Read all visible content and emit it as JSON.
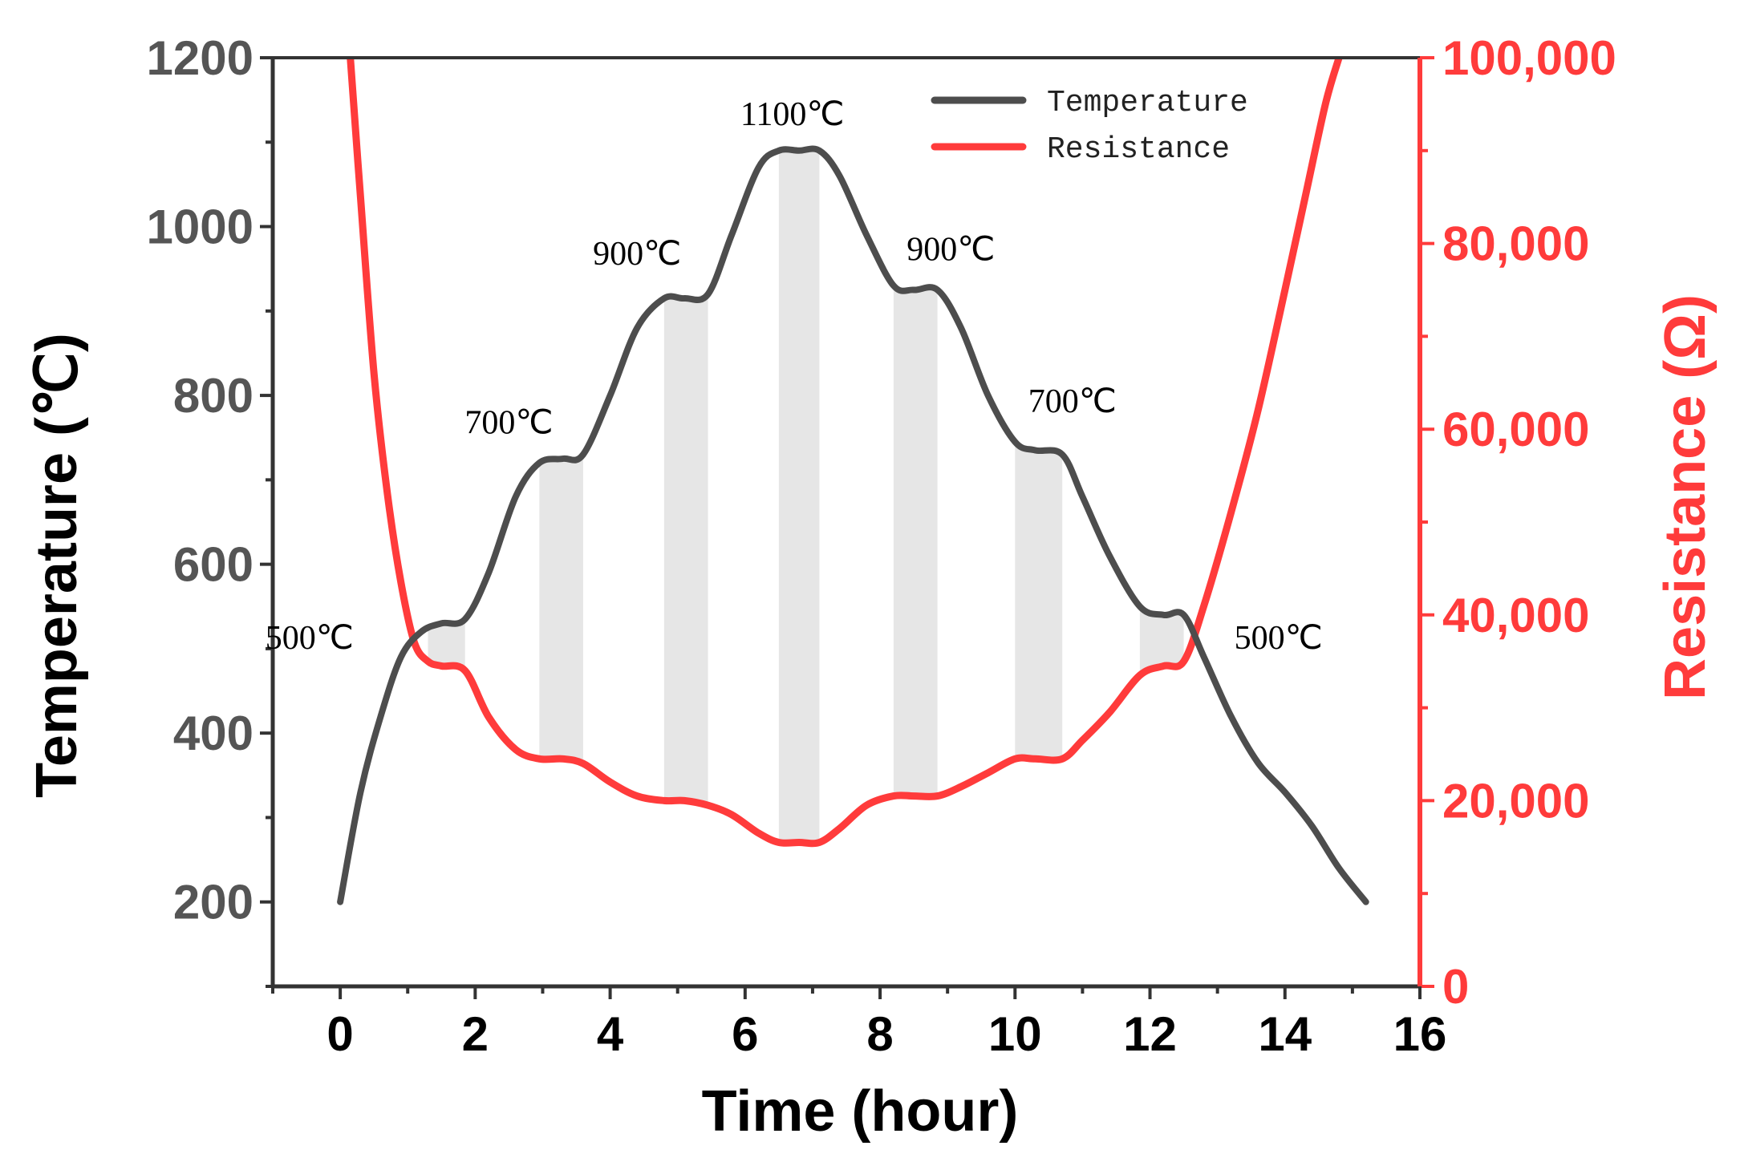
{
  "chart_data": {
    "type": "line",
    "title": "",
    "xlabel": "Time (hour)",
    "ylabel_left": "Temperature (℃)",
    "ylabel_right": "Resistance (Ω)",
    "xlim": [
      -1,
      16
    ],
    "ylim_left": [
      100,
      1200
    ],
    "ylim_right": [
      0,
      100000
    ],
    "x_ticks": [
      0,
      2,
      4,
      6,
      8,
      10,
      12,
      14,
      16
    ],
    "x_tick_labels": [
      "0",
      "2",
      "4",
      "6",
      "8",
      "10",
      "12",
      "14",
      "16"
    ],
    "y_left_ticks": [
      200,
      400,
      600,
      800,
      1000,
      1200
    ],
    "y_left_tick_labels": [
      "200",
      "400",
      "600",
      "800",
      "1000",
      "1200"
    ],
    "y_right_ticks": [
      0,
      20000,
      40000,
      60000,
      80000,
      100000
    ],
    "y_right_tick_labels": [
      "0",
      "20,000",
      "40,000",
      "60,000",
      "80,000",
      "100,000"
    ],
    "grid": false,
    "legend_position": "top-right",
    "colors": {
      "temperature": "#4d4d4d",
      "resistance": "#ff3b3b",
      "hold_band": "#e6e6e6",
      "axis": "#333333"
    },
    "hold_bands": [
      {
        "x0": 1.3,
        "x1": 1.85
      },
      {
        "x0": 2.95,
        "x1": 3.6
      },
      {
        "x0": 4.8,
        "x1": 5.45
      },
      {
        "x0": 6.5,
        "x1": 7.1
      },
      {
        "x0": 8.2,
        "x1": 8.85
      },
      {
        "x0": 10.0,
        "x1": 10.7
      },
      {
        "x0": 11.85,
        "x1": 12.5
      }
    ],
    "series": [
      {
        "name": "Temperature",
        "axis": "left",
        "x": [
          0,
          0.3,
          0.6,
          0.9,
          1.2,
          1.5,
          1.85,
          2.2,
          2.6,
          2.95,
          3.3,
          3.6,
          4.0,
          4.4,
          4.8,
          5.1,
          5.45,
          5.8,
          6.2,
          6.5,
          6.8,
          7.1,
          7.4,
          7.8,
          8.2,
          8.5,
          8.85,
          9.2,
          9.6,
          10.0,
          10.3,
          10.7,
          11.0,
          11.4,
          11.85,
          12.2,
          12.5,
          12.8,
          13.2,
          13.6,
          14.0,
          14.4,
          14.8,
          15.2
        ],
        "y": [
          200,
          330,
          420,
          490,
          520,
          530,
          535,
          590,
          680,
          720,
          725,
          730,
          800,
          880,
          915,
          915,
          920,
          990,
          1070,
          1090,
          1090,
          1090,
          1060,
          990,
          930,
          925,
          925,
          880,
          800,
          745,
          735,
          730,
          680,
          610,
          550,
          540,
          540,
          490,
          420,
          365,
          330,
          290,
          240,
          200
        ]
      },
      {
        "name": "Resistance",
        "axis": "right",
        "x": [
          0.15,
          0.3,
          0.5,
          0.7,
          0.9,
          1.1,
          1.3,
          1.5,
          1.85,
          2.2,
          2.6,
          2.95,
          3.3,
          3.6,
          4.0,
          4.4,
          4.8,
          5.1,
          5.45,
          5.8,
          6.2,
          6.5,
          6.8,
          7.1,
          7.4,
          7.8,
          8.2,
          8.5,
          8.85,
          9.2,
          9.6,
          10.0,
          10.3,
          10.7,
          11.0,
          11.4,
          11.85,
          12.2,
          12.5,
          12.8,
          13.2,
          13.6,
          14.0,
          14.3,
          14.6,
          14.8
        ],
        "y": [
          100000,
          85000,
          66000,
          53000,
          43500,
          37000,
          35000,
          34500,
          34000,
          29000,
          25500,
          24500,
          24500,
          24000,
          22000,
          20500,
          20000,
          20000,
          19500,
          18500,
          16500,
          15500,
          15500,
          15500,
          17000,
          19500,
          20500,
          20500,
          20500,
          21500,
          23000,
          24500,
          24500,
          24500,
          26500,
          29500,
          33500,
          34500,
          35000,
          41000,
          51000,
          62000,
          75000,
          85000,
          95000,
          100000
        ]
      }
    ],
    "annotations": [
      {
        "text": "500℃",
        "x": 0.2,
        "y": 500,
        "anchor": "end"
      },
      {
        "text": "700℃",
        "x": 2.5,
        "y": 755,
        "anchor": "middle"
      },
      {
        "text": "900℃",
        "x": 4.4,
        "y": 955,
        "anchor": "middle"
      },
      {
        "text": "1100℃",
        "x": 6.7,
        "y": 1120,
        "anchor": "middle"
      },
      {
        "text": "900℃",
        "x": 9.05,
        "y": 960,
        "anchor": "middle"
      },
      {
        "text": "700℃",
        "x": 10.85,
        "y": 780,
        "anchor": "middle"
      },
      {
        "text": "500℃",
        "x": 13.25,
        "y": 500,
        "anchor": "start"
      }
    ],
    "legend": [
      {
        "label": "Temperature",
        "series": "Temperature"
      },
      {
        "label": "Resistance",
        "series": "Resistance"
      }
    ]
  }
}
